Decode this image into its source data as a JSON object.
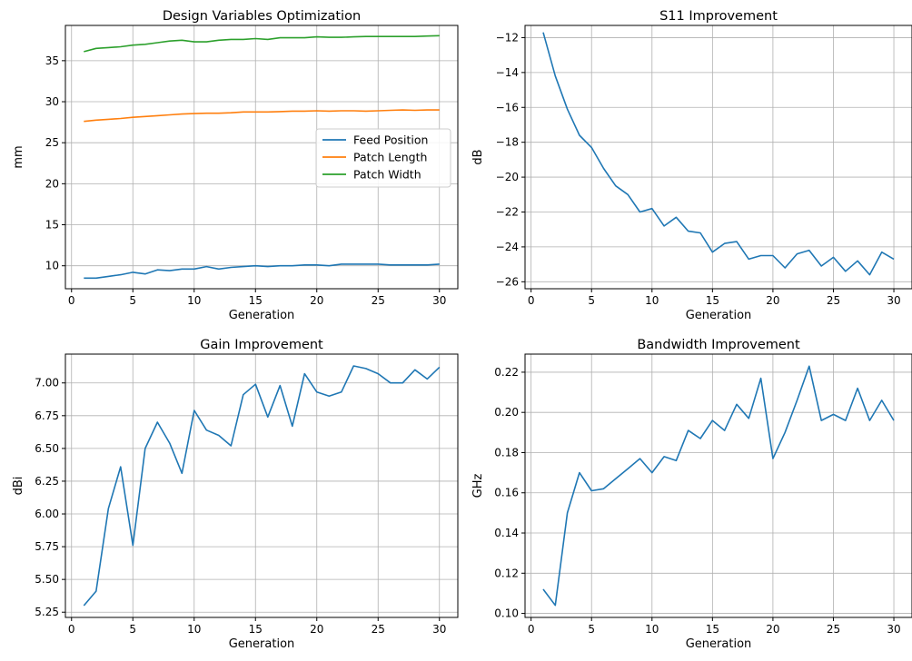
{
  "chart_data": [
    {
      "type": "line",
      "title": "Design Variables Optimization",
      "xlabel": "Generation",
      "ylabel": "mm",
      "xlim": [
        -0.5,
        31.5
      ],
      "ylim": [
        7.2,
        39.3
      ],
      "xticks": [
        0,
        5,
        10,
        15,
        20,
        25,
        30
      ],
      "yticks": [
        10,
        15,
        20,
        25,
        30,
        35
      ],
      "grid": true,
      "legend": "center-right",
      "x": [
        1,
        2,
        3,
        4,
        5,
        6,
        7,
        8,
        9,
        10,
        11,
        12,
        13,
        14,
        15,
        16,
        17,
        18,
        19,
        20,
        21,
        22,
        23,
        24,
        25,
        26,
        27,
        28,
        29,
        30
      ],
      "series": [
        {
          "name": "Feed Position",
          "color": "#1f77b4",
          "values": [
            8.5,
            8.5,
            8.7,
            8.9,
            9.2,
            9.0,
            9.5,
            9.4,
            9.6,
            9.6,
            9.9,
            9.6,
            9.8,
            9.9,
            10.0,
            9.9,
            10.0,
            10.0,
            10.1,
            10.1,
            10.0,
            10.2,
            10.2,
            10.2,
            10.2,
            10.1,
            10.1,
            10.1,
            10.1,
            10.2
          ]
        },
        {
          "name": "Patch Length",
          "color": "#ff7f0e",
          "values": [
            27.6,
            27.75,
            27.85,
            27.95,
            28.1,
            28.2,
            28.3,
            28.4,
            28.5,
            28.55,
            28.6,
            28.6,
            28.65,
            28.75,
            28.75,
            28.75,
            28.8,
            28.85,
            28.85,
            28.9,
            28.85,
            28.9,
            28.9,
            28.85,
            28.9,
            28.95,
            29.0,
            28.95,
            29.0,
            29.0
          ]
        },
        {
          "name": "Patch Width",
          "color": "#2ca02c",
          "values": [
            36.1,
            36.5,
            36.6,
            36.7,
            36.9,
            37.0,
            37.2,
            37.4,
            37.5,
            37.3,
            37.3,
            37.5,
            37.6,
            37.6,
            37.7,
            37.6,
            37.8,
            37.8,
            37.8,
            37.9,
            37.85,
            37.85,
            37.9,
            37.95,
            37.95,
            37.95,
            37.95,
            37.95,
            38.0,
            38.05
          ]
        }
      ]
    },
    {
      "type": "line",
      "title": "S11 Improvement",
      "xlabel": "Generation",
      "ylabel": "dB",
      "xlim": [
        -0.5,
        31.5
      ],
      "ylim": [
        -26.4,
        -11.3
      ],
      "xticks": [
        0,
        5,
        10,
        15,
        20,
        25,
        30
      ],
      "yticks": [
        -26,
        -24,
        -22,
        -20,
        -18,
        -16,
        -14,
        -12
      ],
      "grid": true,
      "x": [
        1,
        2,
        3,
        4,
        5,
        6,
        7,
        8,
        9,
        10,
        11,
        12,
        13,
        14,
        15,
        16,
        17,
        18,
        19,
        20,
        21,
        22,
        23,
        24,
        25,
        26,
        27,
        28,
        29,
        30
      ],
      "series": [
        {
          "color": "#1f77b4",
          "values": [
            -11.7,
            -14.2,
            -16.1,
            -17.6,
            -18.3,
            -19.5,
            -20.5,
            -21.0,
            -22.0,
            -21.8,
            -22.8,
            -22.3,
            -23.1,
            -23.2,
            -24.3,
            -23.8,
            -23.7,
            -24.7,
            -24.5,
            -24.5,
            -25.2,
            -24.4,
            -24.2,
            -25.1,
            -24.6,
            -25.4,
            -24.8,
            -25.6,
            -24.3,
            -24.7
          ]
        }
      ]
    },
    {
      "type": "line",
      "title": "Gain Improvement",
      "xlabel": "Generation",
      "ylabel": "dBi",
      "xlim": [
        -0.5,
        31.5
      ],
      "ylim": [
        5.21,
        7.22
      ],
      "xticks": [
        0,
        5,
        10,
        15,
        20,
        25,
        30
      ],
      "yticks": [
        5.25,
        5.5,
        5.75,
        6.0,
        6.25,
        6.5,
        6.75,
        7.0
      ],
      "ytick_labels": [
        "5.25",
        "5.50",
        "5.75",
        "6.00",
        "6.25",
        "6.50",
        "6.75",
        "7.00"
      ],
      "grid": true,
      "x": [
        1,
        2,
        3,
        4,
        5,
        6,
        7,
        8,
        9,
        10,
        11,
        12,
        13,
        14,
        15,
        16,
        17,
        18,
        19,
        20,
        21,
        22,
        23,
        24,
        25,
        26,
        27,
        28,
        29,
        30
      ],
      "series": [
        {
          "color": "#1f77b4",
          "values": [
            5.3,
            5.41,
            6.04,
            6.36,
            5.76,
            6.5,
            6.7,
            6.54,
            6.31,
            6.79,
            6.64,
            6.6,
            6.52,
            6.91,
            6.99,
            6.74,
            6.98,
            6.67,
            7.07,
            6.93,
            6.9,
            6.93,
            7.13,
            7.11,
            7.07,
            7.0,
            7.0,
            7.1,
            7.03,
            7.12
          ]
        }
      ]
    },
    {
      "type": "line",
      "title": "Bandwidth Improvement",
      "xlabel": "Generation",
      "ylabel": "GHz",
      "xlim": [
        -0.5,
        31.5
      ],
      "ylim": [
        0.098,
        0.229
      ],
      "xticks": [
        0,
        5,
        10,
        15,
        20,
        25,
        30
      ],
      "yticks": [
        0.1,
        0.12,
        0.14,
        0.16,
        0.18,
        0.2,
        0.22
      ],
      "ytick_labels": [
        "0.10",
        "0.12",
        "0.14",
        "0.16",
        "0.18",
        "0.20",
        "0.22"
      ],
      "grid": true,
      "x": [
        1,
        2,
        3,
        4,
        5,
        6,
        7,
        8,
        9,
        10,
        11,
        12,
        13,
        14,
        15,
        16,
        17,
        18,
        19,
        20,
        21,
        22,
        23,
        24,
        25,
        26,
        27,
        28,
        29,
        30
      ],
      "series": [
        {
          "color": "#1f77b4",
          "values": [
            0.112,
            0.104,
            0.15,
            0.17,
            0.161,
            0.162,
            0.167,
            0.172,
            0.177,
            0.17,
            0.178,
            0.176,
            0.191,
            0.187,
            0.196,
            0.191,
            0.204,
            0.197,
            0.217,
            0.177,
            0.19,
            0.206,
            0.223,
            0.196,
            0.199,
            0.196,
            0.212,
            0.196,
            0.206,
            0.196
          ]
        }
      ]
    }
  ]
}
